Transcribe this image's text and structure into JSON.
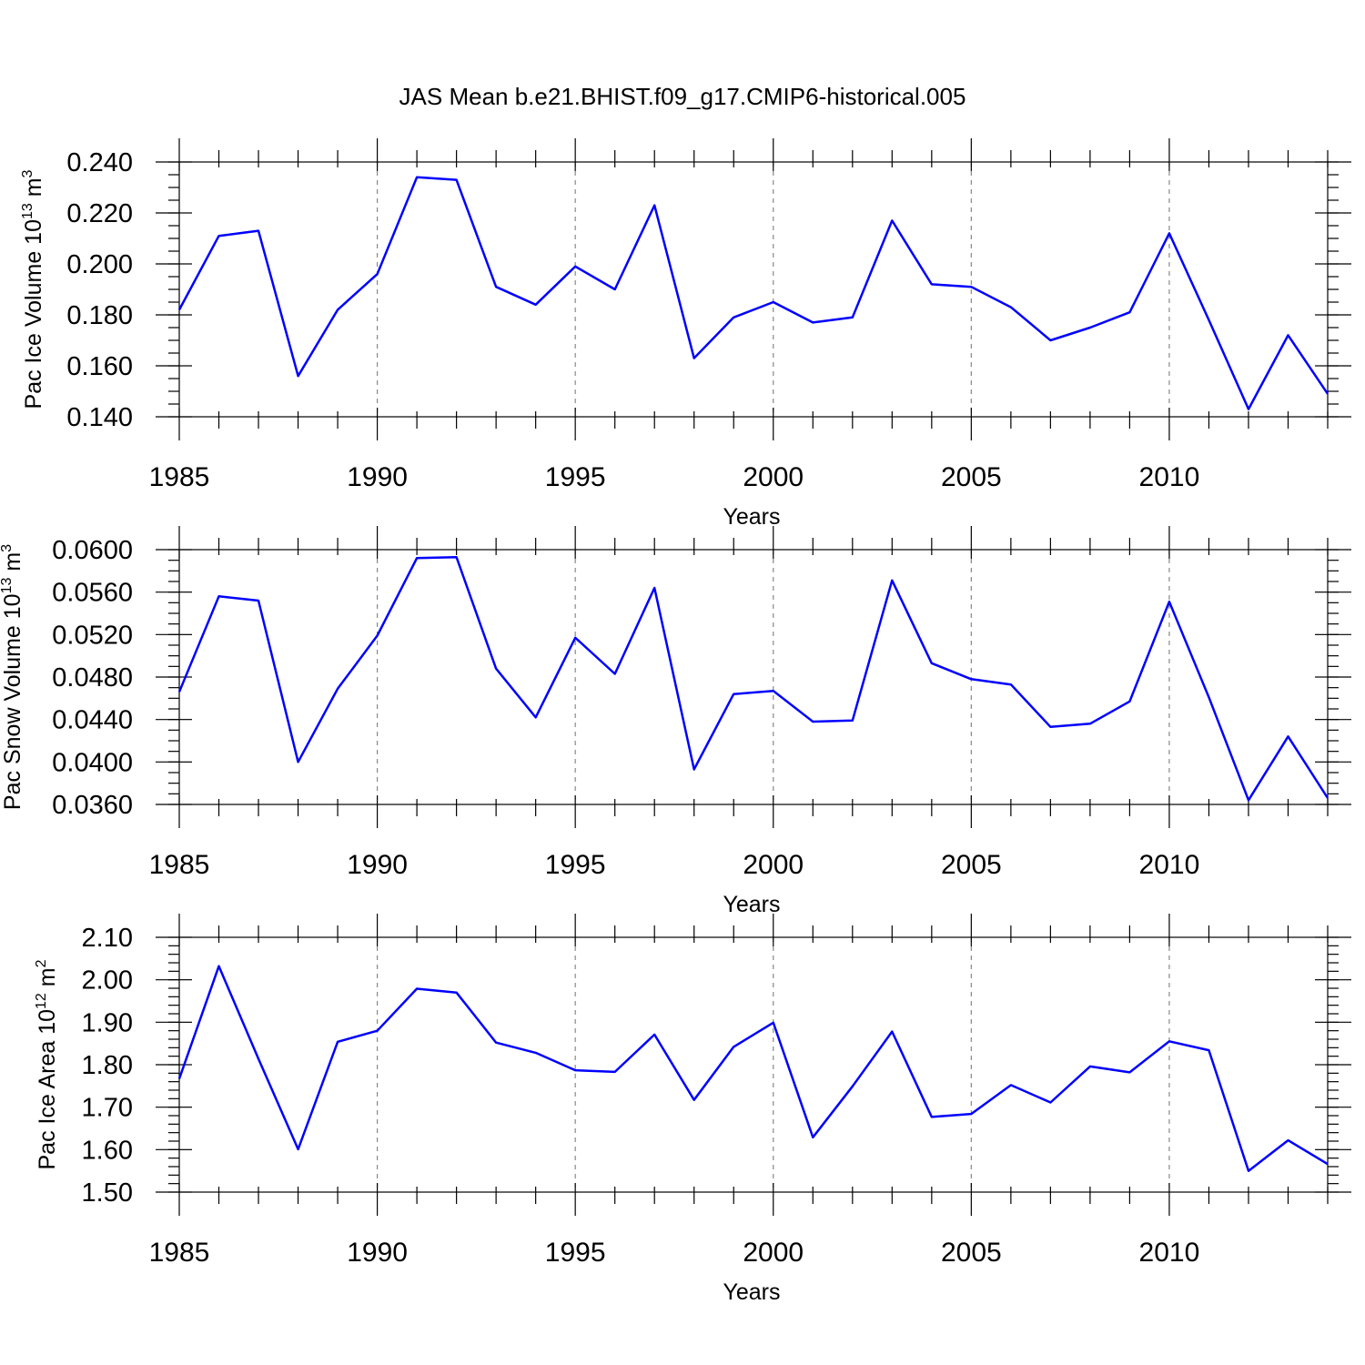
{
  "title": "JAS Mean b.e21.BHIST.f09_g17.CMIP6-historical.005",
  "colors": {
    "line": "#0000ff",
    "axis": "#000000",
    "grid": "#888888"
  },
  "chart_data": [
    {
      "type": "line",
      "ylabel_main": "Pac Ice Volume 10",
      "ylabel_exp": "13",
      "ylabel_unit": "m",
      "ylabel_unit_exp": "3",
      "xlabel": "Years",
      "xlim": [
        1985,
        2014
      ],
      "ylim": [
        0.14,
        0.24
      ],
      "x_major_ticks": [
        1985,
        1990,
        1995,
        2000,
        2005,
        2010
      ],
      "x_tick_labels": [
        "1985",
        "1990",
        "1995",
        "2000",
        "2005",
        "2010"
      ],
      "y_major_ticks": [
        0.14,
        0.16,
        0.18,
        0.2,
        0.22,
        0.24
      ],
      "y_tick_labels": [
        "0.140",
        "0.160",
        "0.180",
        "0.200",
        "0.220",
        "0.240"
      ],
      "y_minor_step": 0.005,
      "grid_x": [
        1990,
        1995,
        2000,
        2005,
        2010
      ],
      "x": [
        1985,
        1986,
        1987,
        1988,
        1989,
        1990,
        1991,
        1992,
        1993,
        1994,
        1995,
        1996,
        1997,
        1998,
        1999,
        2000,
        2001,
        2002,
        2003,
        2004,
        2005,
        2006,
        2007,
        2008,
        2009,
        2010,
        2011,
        2012,
        2013,
        2014
      ],
      "values": [
        0.182,
        0.211,
        0.213,
        0.156,
        0.182,
        0.196,
        0.234,
        0.233,
        0.191,
        0.184,
        0.199,
        0.19,
        0.223,
        0.163,
        0.179,
        0.185,
        0.177,
        0.179,
        0.217,
        0.192,
        0.191,
        0.183,
        0.17,
        0.175,
        0.181,
        0.212,
        0.178,
        0.143,
        0.172,
        0.149
      ]
    },
    {
      "type": "line",
      "ylabel_main": "Pac Snow Volume 10",
      "ylabel_exp": "13",
      "ylabel_unit": "m",
      "ylabel_unit_exp": "3",
      "xlabel": "Years",
      "xlim": [
        1985,
        2014
      ],
      "ylim": [
        0.036,
        0.06
      ],
      "x_major_ticks": [
        1985,
        1990,
        1995,
        2000,
        2005,
        2010
      ],
      "x_tick_labels": [
        "1985",
        "1990",
        "1995",
        "2000",
        "2005",
        "2010"
      ],
      "y_major_ticks": [
        0.036,
        0.04,
        0.044,
        0.048,
        0.052,
        0.056,
        0.06
      ],
      "y_tick_labels": [
        "0.0360",
        "0.0400",
        "0.0440",
        "0.0480",
        "0.0520",
        "0.0560",
        "0.0600"
      ],
      "y_minor_step": 0.001,
      "grid_x": [
        1990,
        1995,
        2000,
        2005,
        2010
      ],
      "x": [
        1985,
        1986,
        1987,
        1988,
        1989,
        1990,
        1991,
        1992,
        1993,
        1994,
        1995,
        1996,
        1997,
        1998,
        1999,
        2000,
        2001,
        2002,
        2003,
        2004,
        2005,
        2006,
        2007,
        2008,
        2009,
        2010,
        2011,
        2012,
        2013,
        2014
      ],
      "values": [
        0.0466,
        0.0556,
        0.0552,
        0.04,
        0.0469,
        0.0519,
        0.0592,
        0.0593,
        0.0488,
        0.0442,
        0.0517,
        0.0483,
        0.0564,
        0.0393,
        0.0464,
        0.0467,
        0.0438,
        0.0439,
        0.0571,
        0.0493,
        0.0478,
        0.0473,
        0.0433,
        0.0436,
        0.0457,
        0.0551,
        0.0461,
        0.0364,
        0.0424,
        0.0366
      ]
    },
    {
      "type": "line",
      "ylabel_main": "Pac Ice Area 10",
      "ylabel_exp": "12",
      "ylabel_unit": "m",
      "ylabel_unit_exp": "2",
      "xlabel": "Years",
      "xlim": [
        1985,
        2014
      ],
      "ylim": [
        1.5,
        2.1
      ],
      "x_major_ticks": [
        1985,
        1990,
        1995,
        2000,
        2005,
        2010
      ],
      "x_tick_labels": [
        "1985",
        "1990",
        "1995",
        "2000",
        "2005",
        "2010"
      ],
      "y_major_ticks": [
        1.5,
        1.6,
        1.7,
        1.8,
        1.9,
        2.0,
        2.1
      ],
      "y_tick_labels": [
        "1.50",
        "1.60",
        "1.70",
        "1.80",
        "1.90",
        "2.00",
        "2.10"
      ],
      "y_minor_step": 0.02,
      "grid_x": [
        1990,
        1995,
        2000,
        2005,
        2010
      ],
      "x": [
        1985,
        1986,
        1987,
        1988,
        1989,
        1990,
        1991,
        1992,
        1993,
        1994,
        1995,
        1996,
        1997,
        1998,
        1999,
        2000,
        2001,
        2002,
        2003,
        2004,
        2005,
        2006,
        2007,
        2008,
        2009,
        2010,
        2011,
        2012,
        2013,
        2014
      ],
      "values": [
        1.767,
        2.032,
        1.814,
        1.601,
        1.854,
        1.88,
        1.979,
        1.97,
        1.852,
        1.828,
        1.787,
        1.783,
        1.871,
        1.717,
        1.842,
        1.899,
        1.629,
        1.749,
        1.878,
        1.677,
        1.684,
        1.752,
        1.711,
        1.796,
        1.782,
        1.855,
        1.834,
        1.55,
        1.622,
        1.566
      ]
    }
  ]
}
